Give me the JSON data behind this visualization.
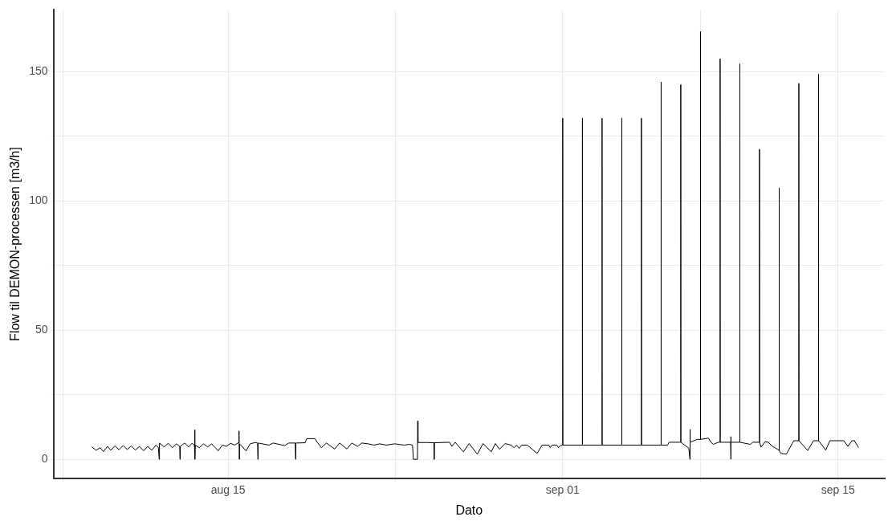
{
  "chart_data": {
    "type": "line",
    "xlabel": "Dato",
    "ylabel": "Flow til DEMON-processen [m3/h]",
    "xlim": [
      "--08-06T03:00",
      "--09-17T09:00"
    ],
    "xticks": [
      {
        "value": "--08-06T15:00",
        "label": null
      },
      {
        "value": "--08-15",
        "label": "aug 15"
      },
      {
        "value": "--08-23T12:00",
        "label": null
      },
      {
        "value": "--09-01",
        "label": "sep 01"
      },
      {
        "value": "--09-08",
        "label": null
      },
      {
        "value": "--09-15",
        "label": "sep 15"
      }
    ],
    "ylim": [
      -7.4,
      174
    ],
    "yticks": [
      0,
      {
        "value": 25,
        "label": null
      },
      50,
      {
        "value": 75,
        "label": null
      },
      100,
      {
        "value": 125,
        "label": null
      },
      150
    ],
    "grid": true,
    "series": [
      {
        "color": "#000000",
        "x": [
          "--08-08T02:00",
          "--08-08T07:00",
          "--08-08T12:00",
          "--08-08T16:00",
          "--08-08T21:00",
          "--08-09T01:00",
          "--08-09T06:00",
          "--08-09T11:00",
          "--08-09T16:00",
          "--08-09T21:00",
          "--08-10T02:00",
          "--08-10T07:00",
          "--08-10T12:00",
          "--08-10T17:00",
          "--08-10T22:00",
          "--08-11T03:00",
          "--08-11T08:00",
          "--08-11T11:00",
          "--08-11T12:00",
          "--08-11T12:20",
          "--08-11T18:00",
          "--08-11T23:00",
          "--08-12T04:00",
          "--08-12T09:00",
          "--08-12T13:00",
          "--08-12T13:20",
          "--08-12T13:40",
          "--08-12T19:00",
          "--08-13T00:00",
          "--08-13T04:00",
          "--08-13T07:00",
          "--08-13T07:20",
          "--08-13T07:40",
          "--08-13T08:00",
          "--08-13T13:00",
          "--08-13T18:00",
          "--08-13T23:00",
          "--08-14T04:00",
          "--08-14T12:00",
          "--08-14T17:00",
          "--08-14T22:00",
          "--08-15T03:00",
          "--08-15T08:00",
          "--08-15T13:00",
          "--08-15T13:20",
          "--08-15T13:40",
          "--08-15T14:00",
          "--08-15T22:00",
          "--08-16T03:00",
          "--08-16T09:00",
          "--08-16T12:00",
          "--08-16T12:20",
          "--08-16T12:40",
          "--08-17T02:00",
          "--08-17T07:00",
          "--08-17T21:00",
          "--08-18T02:00",
          "--08-18T10:00",
          "--08-18T10:20",
          "--08-18T10:40",
          "--08-18T22:00",
          "--08-19T00:00",
          "--08-19T10:00",
          "--08-19T13:00",
          "--08-19T18:00",
          "--08-20T00:00",
          "--08-20T10:00",
          "--08-20T16:00",
          "--08-21T01:00",
          "--08-21T07:00",
          "--08-21T14:00",
          "--08-21T19:00",
          "--08-22T03:00",
          "--08-22T10:00",
          "--08-22T17:00",
          "--08-23T01:00",
          "--08-23T11:00",
          "--08-23T23:00",
          "--08-24T05:00",
          "--08-24T09:00",
          "--08-24T10:00",
          "--08-24T15:00",
          "--08-24T15:20",
          "--08-24T15:40",
          "--08-25T03:00",
          "--08-25T11:00",
          "--08-25T11:20",
          "--08-25T11:40",
          "--08-26T06:00",
          "--08-26T09:00",
          "--08-26T13:00",
          "--08-26T23:00",
          "--08-27T06:00",
          "--08-27T16:00",
          "--08-27T23:00",
          "--08-28T09:00",
          "--08-28T14:00",
          "--08-28T19:00",
          "--08-29T02:00",
          "--08-29T09:00",
          "--08-29T13:00",
          "--08-29T16:00",
          "--08-29T19:00",
          "--08-29T22:00",
          "--08-30T05:00",
          "--08-30T17:00",
          "--08-30T23:00",
          "--08-31T07:00",
          "--08-31T09:00",
          "--08-31T11:00",
          "--08-31T17:00",
          "--08-31T19:00",
          "--08-31T22:00",
          "--09-01T00:00",
          "--09-01T00:10",
          "--09-01T00:20",
          "--09-02T00:00",
          "--09-02T00:10",
          "--09-02T00:20",
          "--09-03T00:00",
          "--09-03T00:10",
          "--09-03T00:20",
          "--09-04T00:00",
          "--09-04T00:10",
          "--09-04T00:20",
          "--09-05T00:00",
          "--09-05T00:10",
          "--09-05T00:20",
          "--09-06T00:00",
          "--09-06T00:10",
          "--09-06T00:20",
          "--09-06T08:00",
          "--09-06T10:00",
          "--09-07T00:00",
          "--09-07T00:10",
          "--09-07T00:20",
          "--09-07T10:00",
          "--09-07T11:20",
          "--09-07T11:30",
          "--09-07T11:40",
          "--09-07T20:00",
          "--09-08T00:00",
          "--09-08T00:10",
          "--09-08T00:20",
          "--09-08T10:00",
          "--09-08T13:00",
          "--09-08T16:00",
          "--09-08T22:00",
          "--09-09T00:00",
          "--09-09T00:10",
          "--09-09T00:20",
          "--09-09T13:00",
          "--09-09T13:10",
          "--09-09T13:20",
          "--09-09T13:30",
          "--09-10T00:00",
          "--09-10T00:10",
          "--09-10T00:20",
          "--09-10T13:00",
          "--09-10T16:00",
          "--09-11T00:00",
          "--09-11T00:10",
          "--09-11T00:20",
          "--09-11T02:00",
          "--09-11T07:00",
          "--09-11T11:00",
          "--09-11T16:00",
          "--09-11T19:00",
          "--09-12T00:00",
          "--09-12T00:10",
          "--09-12T00:20",
          "--09-12T02:00",
          "--09-12T09:00",
          "--09-12T18:00",
          "--09-13T00:00",
          "--09-13T00:10",
          "--09-13T00:20",
          "--09-13T11:00",
          "--09-13T18:00",
          "--09-14T00:00",
          "--09-14T00:10",
          "--09-14T00:20",
          "--09-14T09:00",
          "--09-14T14:00",
          "--09-15T07:00",
          "--09-15T12:00",
          "--09-15T17:00",
          "--09-15T20:00",
          "--09-16T01:00"
        ],
        "values": [
          4.8,
          3.5,
          4.5,
          3,
          5,
          3.5,
          5.2,
          3.7,
          5.3,
          3.8,
          5.2,
          3.6,
          5,
          3.3,
          5,
          3.5,
          5.5,
          4.5,
          0,
          6.3,
          4.8,
          6.2,
          4.5,
          6,
          5,
          0,
          5,
          6.3,
          4.8,
          6.2,
          5.5,
          11.4,
          0,
          5.5,
          4.5,
          6,
          4.8,
          6,
          3.3,
          5.5,
          5,
          6.2,
          5.5,
          6.5,
          11,
          0,
          6,
          3.3,
          6,
          6.5,
          6.3,
          0,
          6.3,
          5.5,
          6.3,
          5.3,
          6.3,
          6.3,
          0,
          6.3,
          6.4,
          8,
          8,
          6.5,
          4.5,
          6.3,
          4,
          6.3,
          4,
          6.3,
          5,
          6.3,
          6,
          5.5,
          6,
          5.5,
          6,
          5.5,
          5.8,
          5.5,
          0,
          0,
          14.8,
          6.5,
          6.5,
          6.4,
          0,
          6.4,
          6.6,
          5,
          6.6,
          2.9,
          6.1,
          2,
          6.1,
          2.9,
          6.1,
          3.9,
          6.1,
          5.5,
          4.5,
          5.5,
          4.2,
          5.5,
          5.5,
          2.3,
          5.5,
          5.5,
          4.5,
          5.5,
          5.5,
          4.5,
          5.5,
          5.5,
          132,
          5.5,
          5.5,
          132,
          5.5,
          5.5,
          132,
          5.5,
          5.5,
          132,
          5.5,
          5.5,
          132,
          5.5,
          5.5,
          146,
          5.5,
          5.5,
          6.6,
          6.6,
          145,
          6.6,
          4.3,
          0,
          11.6,
          6.6,
          7.7,
          7.7,
          165.5,
          7.7,
          8.2,
          6.6,
          5.8,
          6.6,
          6.6,
          155,
          6.6,
          6.6,
          8.8,
          0,
          6.6,
          6.6,
          153,
          6.6,
          5.8,
          6.6,
          6.6,
          120,
          6.6,
          4.7,
          6.8,
          6.6,
          5,
          4.5,
          3.5,
          105,
          3.5,
          2.3,
          2,
          7.2,
          7.2,
          145.5,
          7.2,
          3.4,
          7.2,
          7.2,
          149,
          7.2,
          3.6,
          7.2,
          7.2,
          5,
          7.2,
          7.2,
          4.5
        ]
      }
    ]
  }
}
